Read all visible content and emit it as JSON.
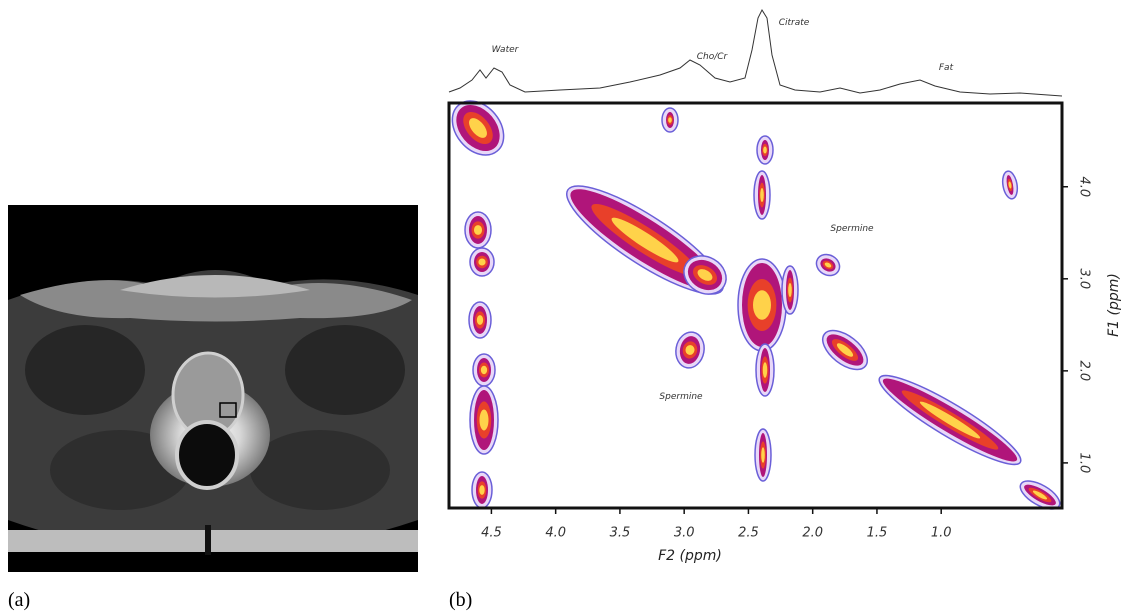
{
  "panel_labels": [
    "(a)",
    "(b)"
  ],
  "chart_data": {
    "type": "contour",
    "x_label": "F2 (ppm)",
    "y_label": "F1 (ppm)",
    "xlim": [
      4.83,
      0.06
    ],
    "ylim": [
      0.51,
      4.91
    ],
    "xticks": [
      {
        "value": 4.5,
        "label": "4.5"
      },
      {
        "value": 4.0,
        "label": "4.0"
      },
      {
        "value": 3.5,
        "label": "3.5"
      },
      {
        "value": 3.0,
        "label": "3.0"
      },
      {
        "value": 2.5,
        "label": "2.5"
      },
      {
        "value": 2.0,
        "label": "2.0"
      },
      {
        "value": 1.5,
        "label": "1.5"
      },
      {
        "value": 1.0,
        "label": "1.0"
      }
    ],
    "yticks": [
      {
        "value": 1.0,
        "label": "1.0"
      },
      {
        "value": 2.0,
        "label": "2.0"
      },
      {
        "value": 3.0,
        "label": "3.0"
      },
      {
        "value": 4.0,
        "label": "4.0"
      }
    ],
    "annotations": [
      "Water",
      "Cho/Cr",
      "Citrate",
      "Fat",
      "Spermine",
      "Spermine"
    ]
  }
}
